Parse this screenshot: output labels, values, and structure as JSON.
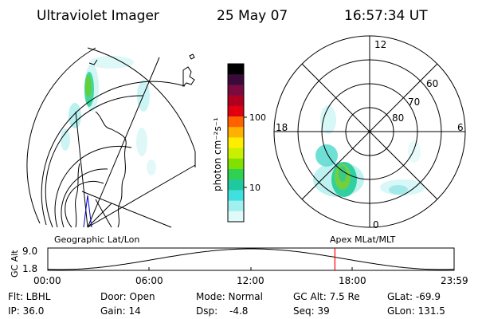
{
  "header": {
    "instrument": "Ultraviolet Imager",
    "date": "25 May 07",
    "time": "16:57:34 UT"
  },
  "geographic_panel": {
    "label": "Geographic Lat/Lon"
  },
  "apex_panel": {
    "label": "Apex MLat/MLT",
    "mlt_labels": [
      "12",
      "18",
      "6",
      "0"
    ],
    "lat_labels": [
      "60",
      "70",
      "80"
    ]
  },
  "colorbar": {
    "units": "photon cm⁻²s⁻¹",
    "tick_labels": [
      "100",
      "10"
    ],
    "colors": [
      "#000000",
      "#3a0a3a",
      "#7a0a40",
      "#b00020",
      "#e00010",
      "#ff6000",
      "#ffb000",
      "#ffee00",
      "#c8f000",
      "#80e000",
      "#30d050",
      "#20c8a0",
      "#40e0e0",
      "#a0f0f0",
      "#e0fafa"
    ]
  },
  "altitude_plot": {
    "ylabel": "GC Alt",
    "y_ticks": [
      "9.0",
      "1.8"
    ],
    "x_ticks": [
      "00:00",
      "06:00",
      "12:00",
      "18:00",
      "23:59"
    ],
    "marker_color": "#ff0000"
  },
  "status": {
    "row1": {
      "filter": "Flt: LBHL",
      "door": "Door: Open",
      "mode": "Mode: Normal",
      "gc_alt": "GC Alt: 7.5 Re",
      "glat": "GLat: -69.9"
    },
    "row2": {
      "ip": "IP: 36.0",
      "gain": "Gain: 14",
      "dsp": "Dsp:",
      "dsp_value": "-4.8",
      "seq": "Seq: 39",
      "glon": "GLon: 131.5"
    }
  }
}
